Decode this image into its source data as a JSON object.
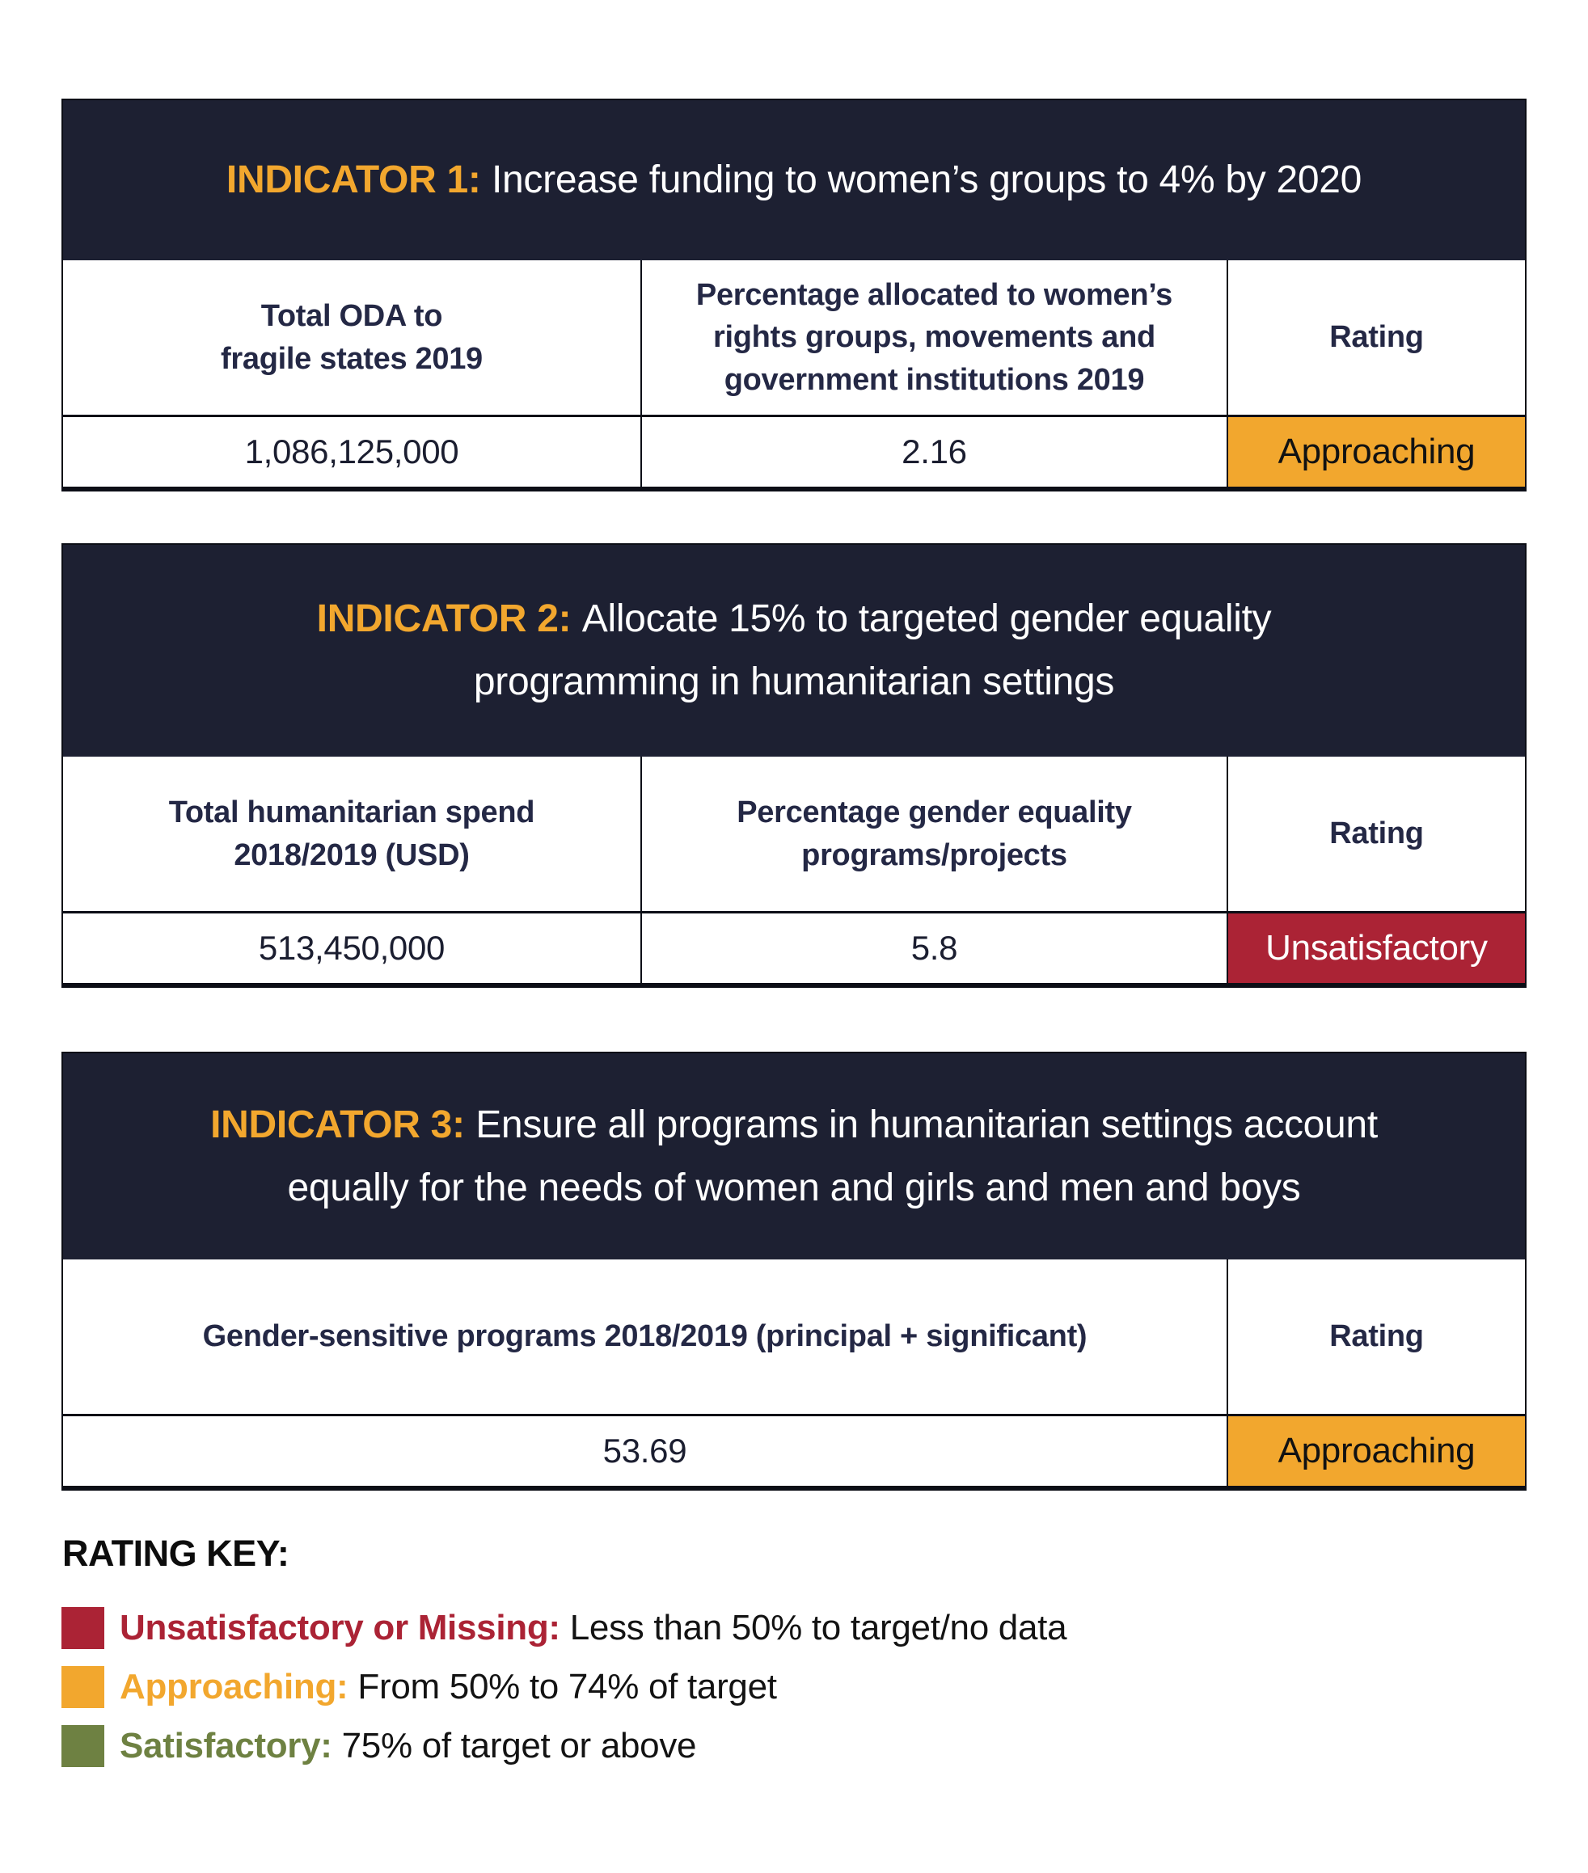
{
  "colors": {
    "navy_band": "#1d2032",
    "approaching_yellow": "#f2a72e",
    "unsatisfactory_red": "#ab2335",
    "satisfactory_green": "#6e8142",
    "header_text": "#242845",
    "border_black": "#0c0e16"
  },
  "tables": [
    {
      "title_label": "INDICATOR 1:",
      "title_text": "Increase funding to women’s groups to 4% by 2020",
      "columns": [
        "Total ODA to\nfragile states 2019",
        "Percentage allocated to women’s\nrights groups, movements and\ngovernment institutions 2019",
        "Rating"
      ],
      "values": [
        "1,086,125,000",
        "2.16"
      ],
      "rating": {
        "label": "Approaching",
        "color": "#f2a72e",
        "text_color": "#121212"
      }
    },
    {
      "title_label": "INDICATOR 2:",
      "title_text": "Allocate 15% to targeted gender equality\nprogramming in humanitarian settings",
      "columns": [
        "Total humanitarian spend\n2018/2019 (USD)",
        "Percentage gender equality\nprograms/projects",
        "Rating"
      ],
      "values": [
        "513,450,000",
        "5.8"
      ],
      "rating": {
        "label": "Unsatisfactory",
        "color": "#ab2335",
        "text_color": "#ffffff"
      }
    },
    {
      "title_label": "INDICATOR 3:",
      "title_text": "Ensure all programs in humanitarian settings account\nequally for the needs of women and girls and men and boys",
      "columns": [
        "Gender-sensitive programs 2018/2019 (principal + significant)",
        "Rating"
      ],
      "values": [
        "53.69"
      ],
      "rating": {
        "label": "Approaching",
        "color": "#f2a72e",
        "text_color": "#121212"
      }
    }
  ],
  "rating_key": {
    "heading": "RATING KEY:",
    "items": [
      {
        "label": "Unsatisfactory or Missing:",
        "description": "Less than 50% to target/no data",
        "color": "#ab2335"
      },
      {
        "label": "Approaching:",
        "description": "From 50% to 74% of target",
        "color": "#f2a72e"
      },
      {
        "label": "Satisfactory:",
        "description": "75% of target or above",
        "color": "#6e8142"
      }
    ]
  }
}
